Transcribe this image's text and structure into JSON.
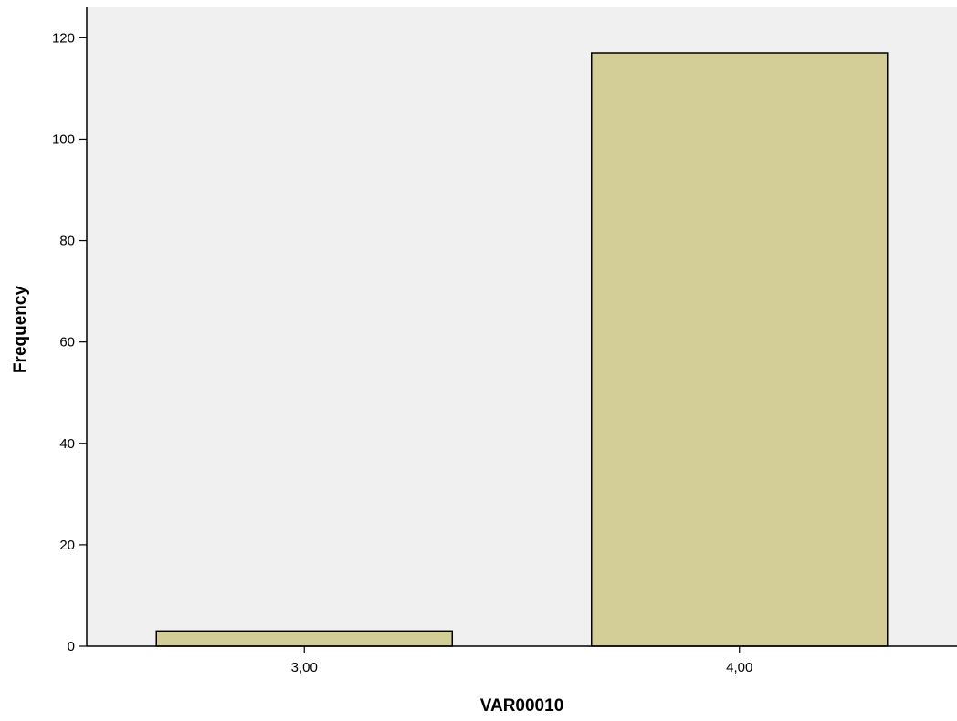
{
  "chart_data": {
    "type": "bar",
    "categories": [
      "3,00",
      "4,00"
    ],
    "values": [
      3,
      117
    ],
    "title": "",
    "xlabel": "VAR00010",
    "ylabel": "Frequency",
    "ylim": [
      0,
      126
    ],
    "yticks": [
      0,
      20,
      40,
      60,
      80,
      100,
      120
    ],
    "grid": false,
    "legend": "none",
    "colors": {
      "plot_background": "#f0f0f0",
      "bar_fill": "#d3ce97",
      "bar_stroke": "#000000",
      "axis": "#000000"
    }
  }
}
